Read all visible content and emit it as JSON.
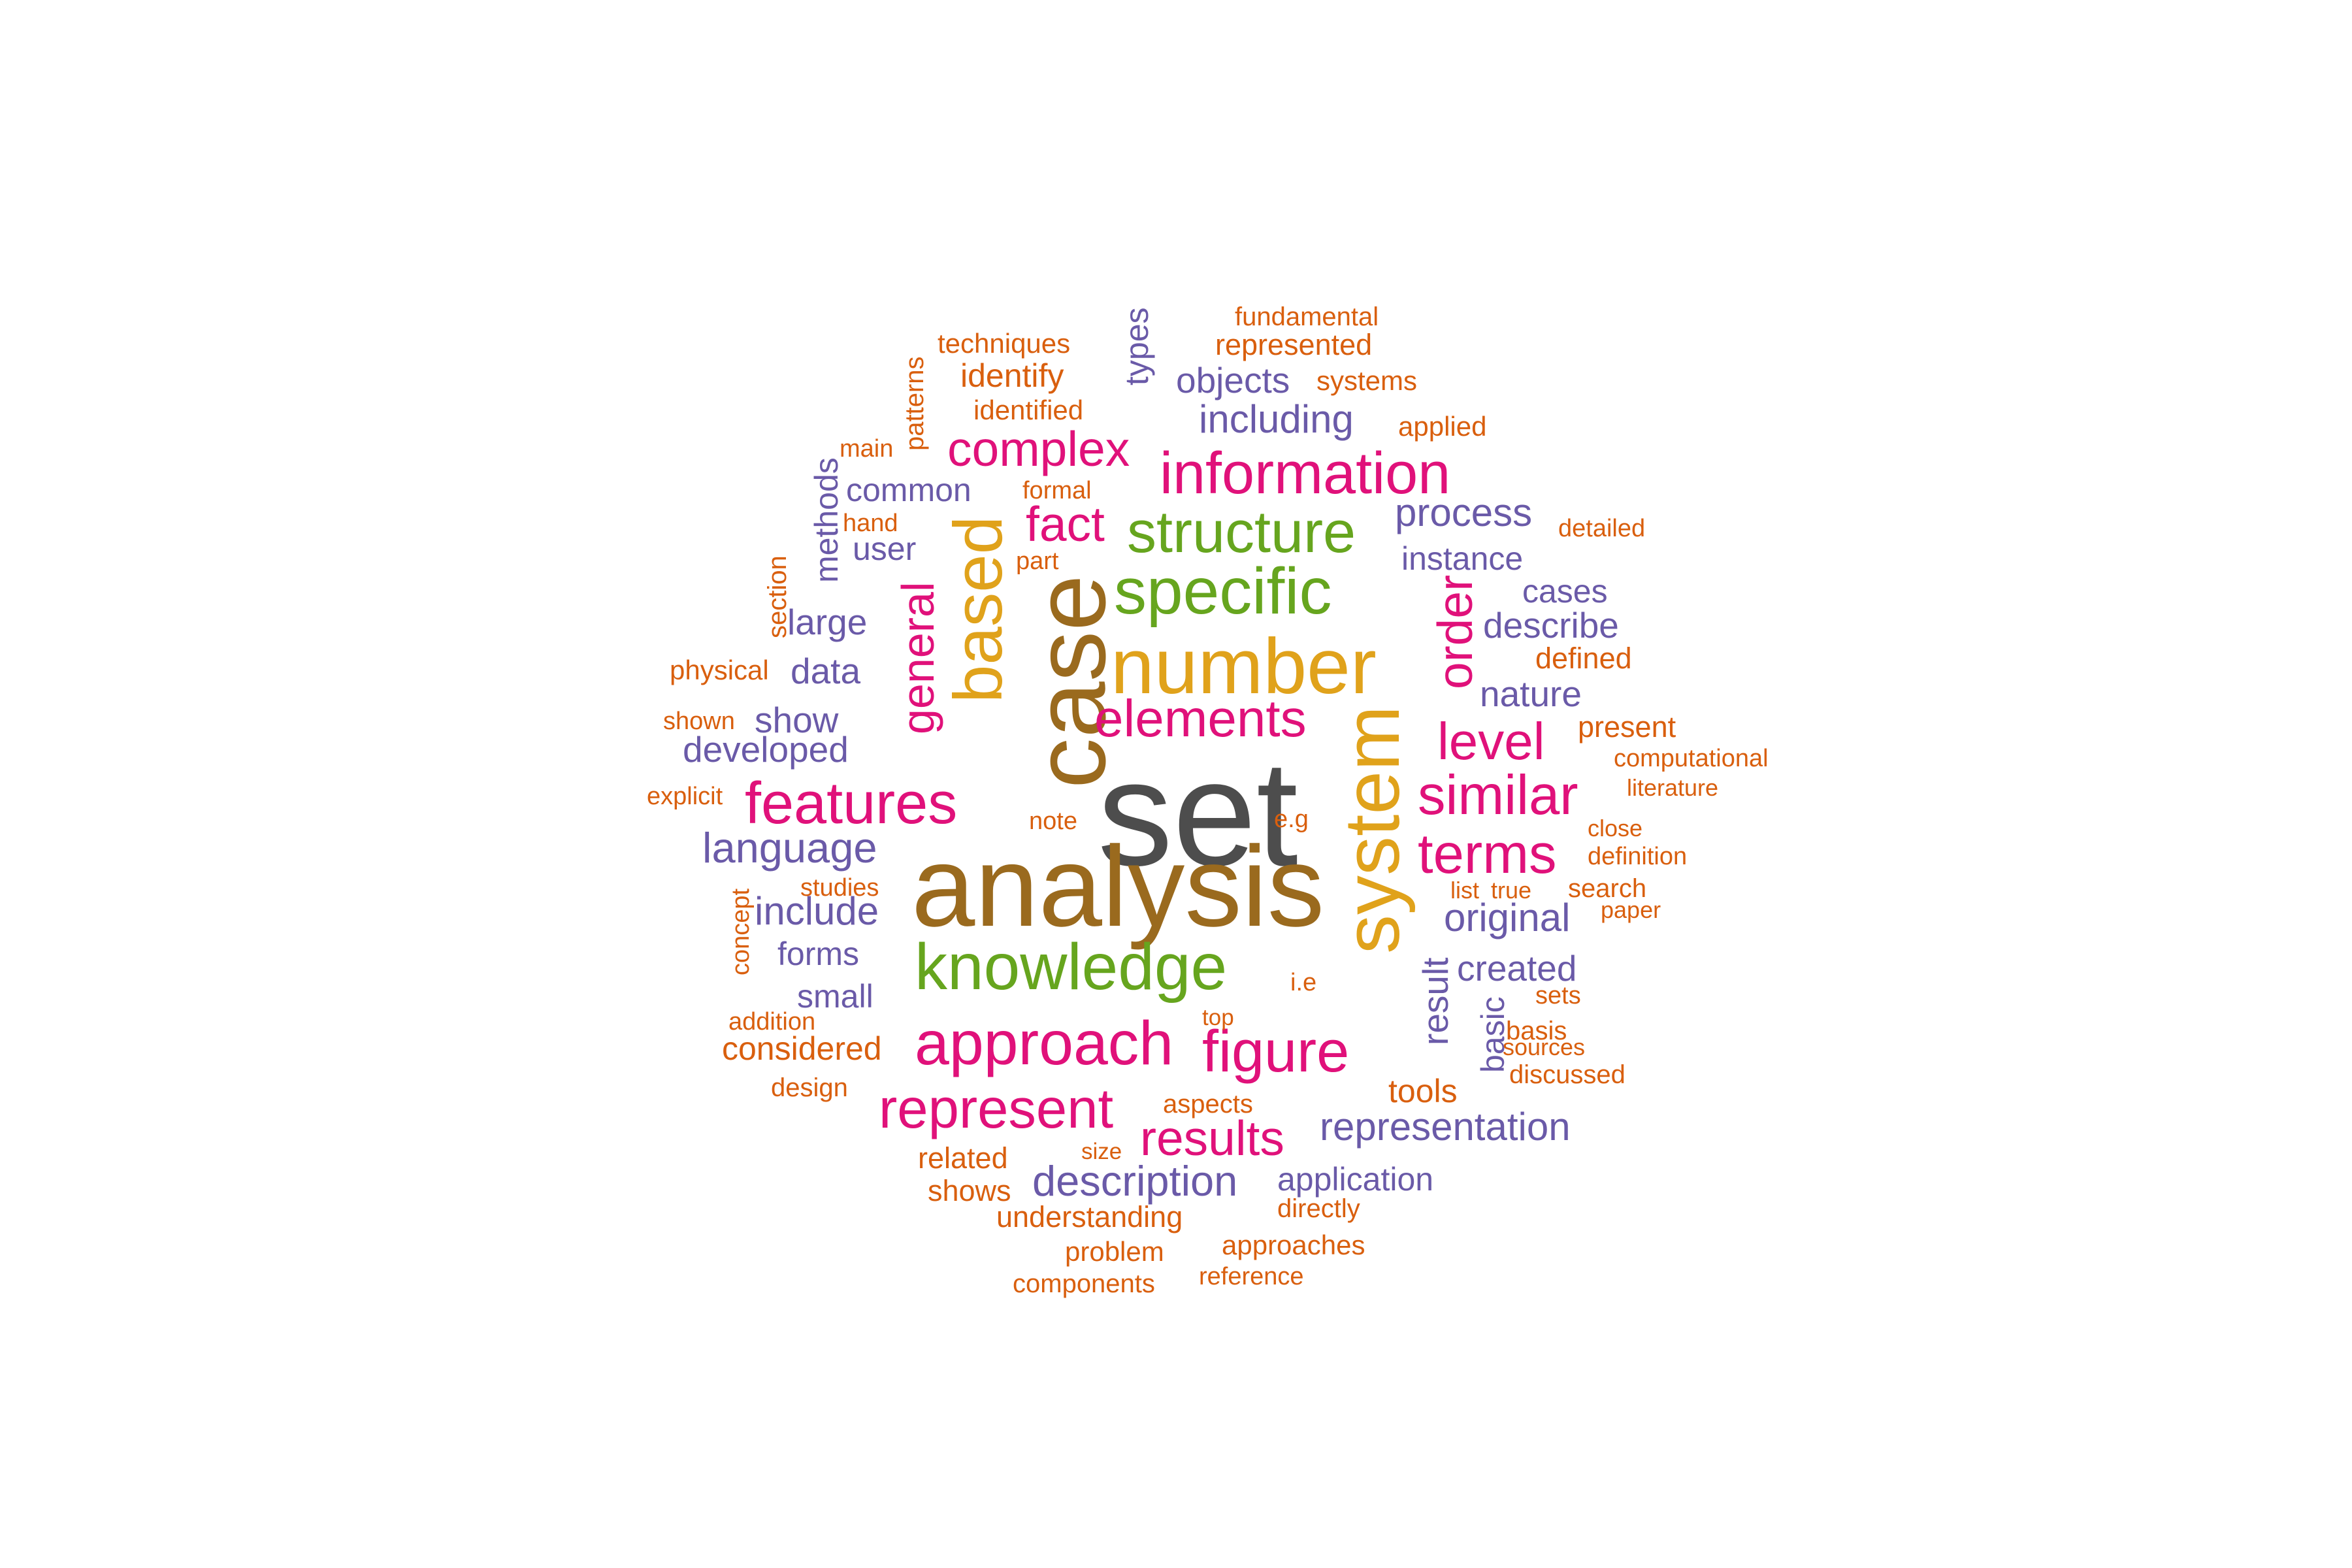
{
  "palette": {
    "gray": "#4d4d4d",
    "brown": "#9a6a1e",
    "gold": "#e0a21b",
    "green": "#66a51e",
    "magenta": "#e0117a",
    "purple": "#6a5aa8",
    "orange": "#d95f0e"
  },
  "words": [
    {
      "text": "set",
      "color": "gray",
      "vertical": false
    },
    {
      "text": "analysis",
      "color": "brown",
      "vertical": false
    },
    {
      "text": "case",
      "color": "brown",
      "vertical": true
    },
    {
      "text": "number",
      "color": "gold",
      "vertical": false
    },
    {
      "text": "system",
      "color": "gold",
      "vertical": true
    },
    {
      "text": "based",
      "color": "gold",
      "vertical": true
    },
    {
      "text": "knowledge",
      "color": "green",
      "vertical": false
    },
    {
      "text": "specific",
      "color": "green",
      "vertical": false
    },
    {
      "text": "structure",
      "color": "green",
      "vertical": false
    },
    {
      "text": "information",
      "color": "magenta",
      "vertical": false
    },
    {
      "text": "approach",
      "color": "magenta",
      "vertical": false
    },
    {
      "text": "features",
      "color": "magenta",
      "vertical": false
    },
    {
      "text": "figure",
      "color": "magenta",
      "vertical": false
    },
    {
      "text": "represent",
      "color": "magenta",
      "vertical": false
    },
    {
      "text": "similar",
      "color": "magenta",
      "vertical": false
    },
    {
      "text": "terms",
      "color": "magenta",
      "vertical": false
    },
    {
      "text": "elements",
      "color": "magenta",
      "vertical": false
    },
    {
      "text": "level",
      "color": "magenta",
      "vertical": false
    },
    {
      "text": "complex",
      "color": "magenta",
      "vertical": false
    },
    {
      "text": "results",
      "color": "magenta",
      "vertical": false
    },
    {
      "text": "fact",
      "color": "magenta",
      "vertical": false
    },
    {
      "text": "order",
      "color": "magenta",
      "vertical": true
    },
    {
      "text": "general",
      "color": "magenta",
      "vertical": true
    },
    {
      "text": "language",
      "color": "purple",
      "vertical": false
    },
    {
      "text": "description",
      "color": "purple",
      "vertical": false
    },
    {
      "text": "representation",
      "color": "purple",
      "vertical": false
    },
    {
      "text": "original",
      "color": "purple",
      "vertical": false
    },
    {
      "text": "include",
      "color": "purple",
      "vertical": false
    },
    {
      "text": "developed",
      "color": "purple",
      "vertical": false
    },
    {
      "text": "including",
      "color": "purple",
      "vertical": false
    },
    {
      "text": "process",
      "color": "purple",
      "vertical": false
    },
    {
      "text": "created",
      "color": "purple",
      "vertical": false
    },
    {
      "text": "describe",
      "color": "purple",
      "vertical": false
    },
    {
      "text": "nature",
      "color": "purple",
      "vertical": false
    },
    {
      "text": "application",
      "color": "purple",
      "vertical": false
    },
    {
      "text": "objects",
      "color": "purple",
      "vertical": false
    },
    {
      "text": "common",
      "color": "purple",
      "vertical": false
    },
    {
      "text": "large",
      "color": "purple",
      "vertical": false
    },
    {
      "text": "data",
      "color": "purple",
      "vertical": false
    },
    {
      "text": "show",
      "color": "purple",
      "vertical": false
    },
    {
      "text": "forms",
      "color": "purple",
      "vertical": false
    },
    {
      "text": "small",
      "color": "purple",
      "vertical": false
    },
    {
      "text": "user",
      "color": "purple",
      "vertical": false
    },
    {
      "text": "instance",
      "color": "purple",
      "vertical": false
    },
    {
      "text": "cases",
      "color": "purple",
      "vertical": false
    },
    {
      "text": "result",
      "color": "purple",
      "vertical": true
    },
    {
      "text": "basic",
      "color": "purple",
      "vertical": true
    },
    {
      "text": "types",
      "color": "purple",
      "vertical": true
    },
    {
      "text": "methods",
      "color": "purple",
      "vertical": true
    },
    {
      "text": "identify",
      "color": "orange",
      "vertical": false
    },
    {
      "text": "considered",
      "color": "orange",
      "vertical": false
    },
    {
      "text": "understanding",
      "color": "orange",
      "vertical": false
    },
    {
      "text": "represented",
      "color": "orange",
      "vertical": false
    },
    {
      "text": "techniques",
      "color": "orange",
      "vertical": false
    },
    {
      "text": "identified",
      "color": "orange",
      "vertical": false
    },
    {
      "text": "fundamental",
      "color": "orange",
      "vertical": false
    },
    {
      "text": "systems",
      "color": "orange",
      "vertical": false
    },
    {
      "text": "applied",
      "color": "orange",
      "vertical": false
    },
    {
      "text": "tools",
      "color": "orange",
      "vertical": false
    },
    {
      "text": "defined",
      "color": "orange",
      "vertical": false
    },
    {
      "text": "present",
      "color": "orange",
      "vertical": false
    },
    {
      "text": "related",
      "color": "orange",
      "vertical": false
    },
    {
      "text": "shows",
      "color": "orange",
      "vertical": false
    },
    {
      "text": "problem",
      "color": "orange",
      "vertical": false
    },
    {
      "text": "approaches",
      "color": "orange",
      "vertical": false
    },
    {
      "text": "directly",
      "color": "orange",
      "vertical": false
    },
    {
      "text": "aspects",
      "color": "orange",
      "vertical": false
    },
    {
      "text": "components",
      "color": "orange",
      "vertical": false
    },
    {
      "text": "reference",
      "color": "orange",
      "vertical": false
    },
    {
      "text": "physical",
      "color": "orange",
      "vertical": false
    },
    {
      "text": "design",
      "color": "orange",
      "vertical": false
    },
    {
      "text": "addition",
      "color": "orange",
      "vertical": false
    },
    {
      "text": "shown",
      "color": "orange",
      "vertical": false
    },
    {
      "text": "explicit",
      "color": "orange",
      "vertical": false
    },
    {
      "text": "studies",
      "color": "orange",
      "vertical": false
    },
    {
      "text": "formal",
      "color": "orange",
      "vertical": false
    },
    {
      "text": "part",
      "color": "orange",
      "vertical": false
    },
    {
      "text": "hand",
      "color": "orange",
      "vertical": false
    },
    {
      "text": "main",
      "color": "orange",
      "vertical": false
    },
    {
      "text": "note",
      "color": "orange",
      "vertical": false
    },
    {
      "text": "e.g",
      "color": "orange",
      "vertical": false
    },
    {
      "text": "i.e",
      "color": "orange",
      "vertical": false
    },
    {
      "text": "top",
      "color": "orange",
      "vertical": false
    },
    {
      "text": "size",
      "color": "orange",
      "vertical": false
    },
    {
      "text": "detailed",
      "color": "orange",
      "vertical": false
    },
    {
      "text": "computational",
      "color": "orange",
      "vertical": false
    },
    {
      "text": "literature",
      "color": "orange",
      "vertical": false
    },
    {
      "text": "close",
      "color": "orange",
      "vertical": false
    },
    {
      "text": "definition",
      "color": "orange",
      "vertical": false
    },
    {
      "text": "list",
      "color": "orange",
      "vertical": false
    },
    {
      "text": "true",
      "color": "orange",
      "vertical": false
    },
    {
      "text": "search",
      "color": "orange",
      "vertical": false
    },
    {
      "text": "paper",
      "color": "orange",
      "vertical": false
    },
    {
      "text": "sets",
      "color": "orange",
      "vertical": false
    },
    {
      "text": "basis",
      "color": "orange",
      "vertical": false
    },
    {
      "text": "sources",
      "color": "orange",
      "vertical": false
    },
    {
      "text": "discussed",
      "color": "orange",
      "vertical": false
    },
    {
      "text": "section",
      "color": "orange",
      "vertical": true
    },
    {
      "text": "patterns",
      "color": "orange",
      "vertical": true
    },
    {
      "text": "concept",
      "color": "orange",
      "vertical": true
    }
  ]
}
